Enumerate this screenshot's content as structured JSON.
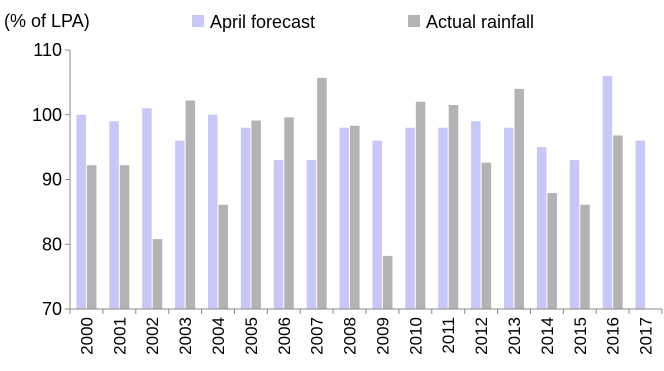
{
  "chart_data": {
    "type": "bar",
    "unit_label": "(% of LPA)",
    "xlabel": "",
    "ylabel": "",
    "ylim": [
      70,
      110
    ],
    "yticks": [
      70,
      80,
      90,
      100,
      110
    ],
    "grid": false,
    "legend_position": "top",
    "categories": [
      "2000",
      "2001",
      "2002",
      "2003",
      "2004",
      "2005",
      "2006",
      "2007",
      "2008",
      "2009",
      "2010",
      "2011",
      "2012",
      "2013",
      "2014",
      "2015",
      "2016",
      "2017"
    ],
    "series": [
      {
        "name": "April forecast",
        "color": "#c8c8f8",
        "values": [
          100,
          99,
          101,
          96,
          100,
          98,
          93,
          93,
          98,
          96,
          98,
          98,
          99,
          98,
          95,
          93,
          106,
          96
        ]
      },
      {
        "name": "Actual rainfall",
        "color": "#b3b3b3",
        "values": [
          92.2,
          92.2,
          80.8,
          102.2,
          86.1,
          99.1,
          99.6,
          105.7,
          98.3,
          78.2,
          102.0,
          101.5,
          92.6,
          104.0,
          87.9,
          86.1,
          96.8,
          null
        ]
      }
    ]
  }
}
